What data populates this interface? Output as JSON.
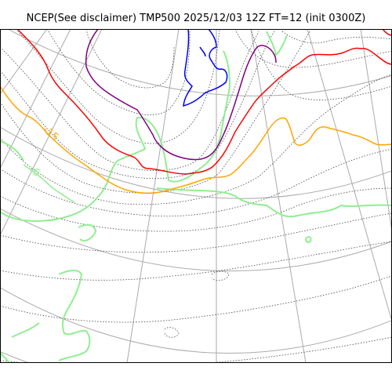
{
  "title": "NCEP(See disclaimer) TMP500 2025/12/03 12Z FT=12 (init 0300Z)",
  "contour_labels": {
    "orange": "-15",
    "green": "-6"
  },
  "colors": {
    "grid": "#aaaaaa",
    "dotted_contours": "#444444",
    "land_outline": "#90ee90",
    "red": "#ff0000",
    "orange": "#ffa500",
    "purple": "#800080",
    "blue": "#0000ff",
    "green": "#90ee90",
    "frame": "#000000"
  }
}
